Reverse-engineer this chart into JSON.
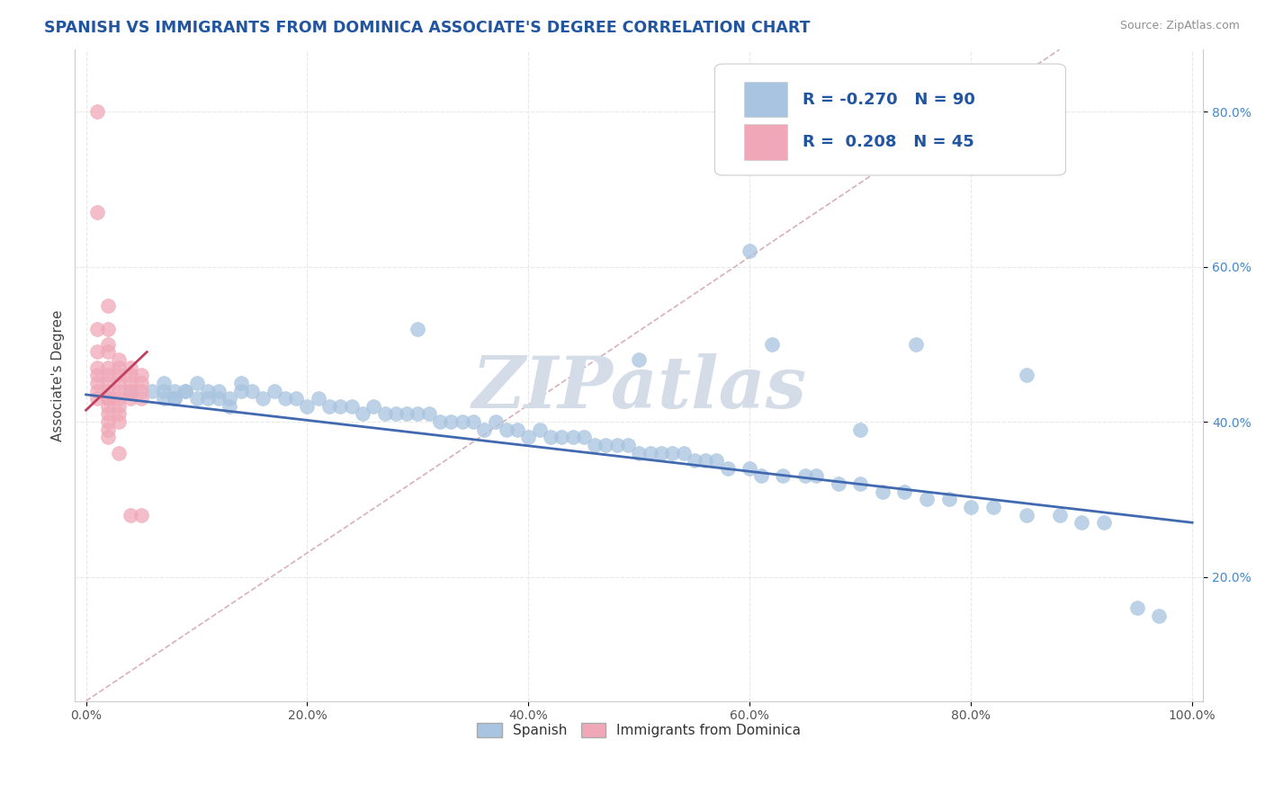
{
  "title": "SPANISH VS IMMIGRANTS FROM DOMINICA ASSOCIATE'S DEGREE CORRELATION CHART",
  "source": "Source: ZipAtlas.com",
  "ylabel": "Associate's Degree",
  "watermark": "ZIPatlas",
  "legend_blue_R": "-0.270",
  "legend_blue_N": "90",
  "legend_pink_R": "0.208",
  "legend_pink_N": "45",
  "legend_blue_label": "Spanish",
  "legend_pink_label": "Immigrants from Dominica",
  "xlim": [
    -0.01,
    1.01
  ],
  "ylim": [
    0.04,
    0.88
  ],
  "xticks": [
    0.0,
    0.2,
    0.4,
    0.6,
    0.8,
    1.0
  ],
  "yticks": [
    0.2,
    0.4,
    0.6,
    0.8
  ],
  "xtick_labels": [
    "0.0%",
    "20.0%",
    "40.0%",
    "60.0%",
    "80.0%",
    "100.0%"
  ],
  "ytick_labels": [
    "20.0%",
    "40.0%",
    "60.0%",
    "80.0%"
  ],
  "blue_scatter_x": [
    0.04,
    0.06,
    0.07,
    0.07,
    0.07,
    0.08,
    0.08,
    0.08,
    0.09,
    0.09,
    0.1,
    0.1,
    0.11,
    0.11,
    0.12,
    0.12,
    0.13,
    0.13,
    0.14,
    0.14,
    0.15,
    0.16,
    0.17,
    0.18,
    0.19,
    0.2,
    0.21,
    0.22,
    0.23,
    0.24,
    0.25,
    0.26,
    0.27,
    0.28,
    0.29,
    0.3,
    0.31,
    0.32,
    0.33,
    0.34,
    0.35,
    0.36,
    0.37,
    0.38,
    0.39,
    0.4,
    0.41,
    0.42,
    0.43,
    0.44,
    0.45,
    0.46,
    0.47,
    0.48,
    0.49,
    0.5,
    0.51,
    0.52,
    0.53,
    0.54,
    0.55,
    0.56,
    0.57,
    0.58,
    0.6,
    0.61,
    0.62,
    0.63,
    0.65,
    0.66,
    0.68,
    0.7,
    0.72,
    0.74,
    0.76,
    0.78,
    0.8,
    0.82,
    0.85,
    0.88,
    0.9,
    0.92,
    0.95,
    0.97,
    0.3,
    0.5,
    0.6,
    0.7,
    0.75,
    0.85
  ],
  "blue_scatter_y": [
    0.44,
    0.44,
    0.45,
    0.43,
    0.44,
    0.43,
    0.44,
    0.43,
    0.44,
    0.44,
    0.45,
    0.43,
    0.44,
    0.43,
    0.43,
    0.44,
    0.42,
    0.43,
    0.44,
    0.45,
    0.44,
    0.43,
    0.44,
    0.43,
    0.43,
    0.42,
    0.43,
    0.42,
    0.42,
    0.42,
    0.41,
    0.42,
    0.41,
    0.41,
    0.41,
    0.41,
    0.41,
    0.4,
    0.4,
    0.4,
    0.4,
    0.39,
    0.4,
    0.39,
    0.39,
    0.38,
    0.39,
    0.38,
    0.38,
    0.38,
    0.38,
    0.37,
    0.37,
    0.37,
    0.37,
    0.36,
    0.36,
    0.36,
    0.36,
    0.36,
    0.35,
    0.35,
    0.35,
    0.34,
    0.34,
    0.33,
    0.5,
    0.33,
    0.33,
    0.33,
    0.32,
    0.32,
    0.31,
    0.31,
    0.3,
    0.3,
    0.29,
    0.29,
    0.28,
    0.28,
    0.27,
    0.27,
    0.16,
    0.15,
    0.52,
    0.48,
    0.62,
    0.39,
    0.5,
    0.46
  ],
  "pink_scatter_x": [
    0.01,
    0.01,
    0.01,
    0.01,
    0.01,
    0.01,
    0.01,
    0.01,
    0.01,
    0.02,
    0.02,
    0.02,
    0.02,
    0.02,
    0.02,
    0.02,
    0.02,
    0.02,
    0.02,
    0.02,
    0.02,
    0.02,
    0.02,
    0.02,
    0.03,
    0.03,
    0.03,
    0.03,
    0.03,
    0.03,
    0.03,
    0.03,
    0.03,
    0.03,
    0.04,
    0.04,
    0.04,
    0.04,
    0.04,
    0.04,
    0.05,
    0.05,
    0.05,
    0.05,
    0.05
  ],
  "pink_scatter_y": [
    0.8,
    0.67,
    0.52,
    0.49,
    0.47,
    0.46,
    0.45,
    0.44,
    0.43,
    0.55,
    0.52,
    0.5,
    0.49,
    0.47,
    0.46,
    0.45,
    0.44,
    0.43,
    0.43,
    0.42,
    0.41,
    0.4,
    0.39,
    0.38,
    0.48,
    0.47,
    0.46,
    0.45,
    0.44,
    0.43,
    0.42,
    0.41,
    0.4,
    0.36,
    0.47,
    0.46,
    0.45,
    0.44,
    0.43,
    0.28,
    0.46,
    0.45,
    0.44,
    0.43,
    0.28
  ],
  "blue_line_x": [
    0.0,
    1.0
  ],
  "blue_line_y": [
    0.435,
    0.27
  ],
  "pink_line_x": [
    0.0,
    0.055
  ],
  "pink_line_y": [
    0.415,
    0.49
  ],
  "diag_line_x": [
    0.0,
    0.88
  ],
  "diag_line_y": [
    0.04,
    0.88
  ],
  "title_color": "#2255a0",
  "blue_scatter_color": "#a8c4e0",
  "pink_scatter_color": "#f0a8b8",
  "blue_line_color": "#4169b0",
  "pink_line_color": "#c04060",
  "diag_line_color": "#d8b0b8",
  "grid_color": "#e8e8e8",
  "watermark_color": "#d4dce8",
  "source_color": "#909090",
  "background_color": "#ffffff",
  "title_fontsize": 12.5,
  "axis_label_fontsize": 11,
  "tick_fontsize": 10,
  "legend_fontsize": 13
}
